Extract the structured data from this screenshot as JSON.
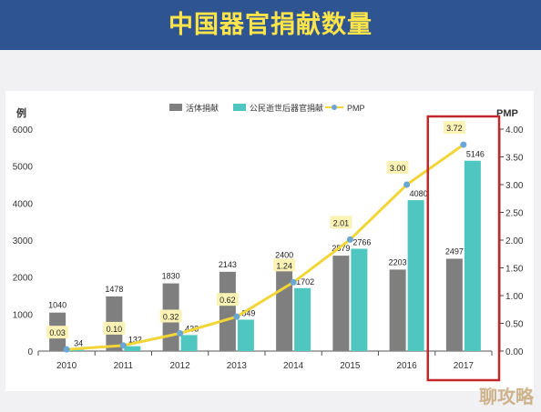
{
  "title": "中国器官捐献数量",
  "watermark": "聊攻略",
  "colors": {
    "banner": "#2e5592",
    "title": "#ffe44a",
    "living": "#7f7f7f",
    "deceased": "#4fc6c0",
    "pmp": "#f2d536",
    "pmp_marker": "#6aa6d6",
    "highlight": "#c0282c",
    "label_bg": "#fbf2b5"
  },
  "chart_data": {
    "type": "bar",
    "categories": [
      "2010",
      "2011",
      "2012",
      "2013",
      "2014",
      "2015",
      "2016",
      "2017"
    ],
    "series": [
      {
        "name": "活体捐献",
        "values": [
          1040,
          1478,
          1830,
          2143,
          2400,
          2579,
          2203,
          2497
        ]
      },
      {
        "name": "公民逝世后器官捐献",
        "values": [
          34,
          132,
          433,
          849,
          1702,
          2766,
          4080,
          5146
        ]
      },
      {
        "name": "PMP",
        "type": "line",
        "axis": "right",
        "values": [
          0.03,
          0.1,
          0.32,
          0.62,
          1.24,
          2.01,
          3.0,
          3.72
        ]
      }
    ],
    "ylabel": "例",
    "y2label": "PMP",
    "ylim": [
      0,
      6000
    ],
    "yticks": [
      "0",
      "1000",
      "2000",
      "3000",
      "4000",
      "5000",
      "6000"
    ],
    "y2lim": [
      0,
      4.0
    ],
    "y2ticks": [
      "0.00",
      "0.50",
      "1.00",
      "1.50",
      "2.00",
      "2.50",
      "3.00",
      "3.50",
      "4.00"
    ],
    "legend_position": "top-center",
    "highlight_category": "2017"
  }
}
